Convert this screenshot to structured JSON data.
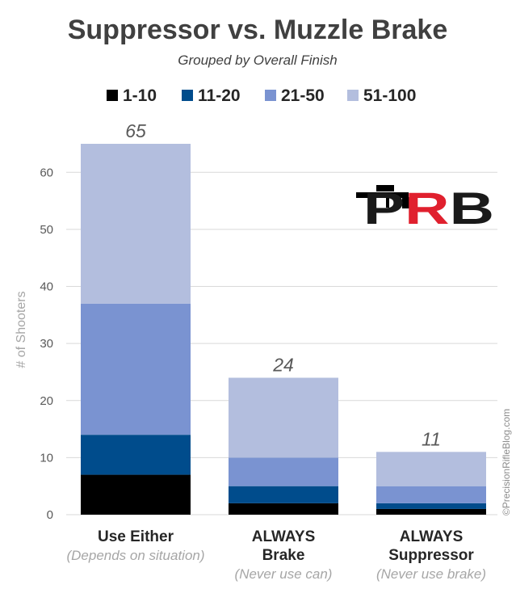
{
  "chart_data": {
    "type": "bar",
    "stacked": true,
    "title": "Suppressor vs. Muzzle Brake",
    "subtitle": "Grouped by Overall Finish",
    "ylabel": "# of Shooters",
    "ylim": [
      0,
      65
    ],
    "yticks": [
      0,
      10,
      20,
      30,
      40,
      50,
      60
    ],
    "grid": true,
    "legend_position": "top",
    "categories": [
      {
        "main": [
          "Use Either"
        ],
        "sub": "(Depends on situation)"
      },
      {
        "main": [
          "ALWAYS",
          "Brake"
        ],
        "sub": "(Never use can)"
      },
      {
        "main": [
          "ALWAYS",
          "Suppressor"
        ],
        "sub": "(Never use brake)"
      }
    ],
    "totals": [
      "65",
      "24",
      "11"
    ],
    "series": [
      {
        "name": "1-10",
        "color": "#000000",
        "values": [
          7,
          2,
          1
        ]
      },
      {
        "name": "11-20",
        "color": "#004c8c",
        "values": [
          7,
          3,
          1
        ]
      },
      {
        "name": "21-50",
        "color": "#7a93d1",
        "values": [
          23,
          5,
          3
        ]
      },
      {
        "name": "51-100",
        "color": "#b3bede",
        "values": [
          28,
          14,
          6
        ]
      }
    ]
  },
  "logo": {
    "text": "PRB"
  },
  "copyright": "©PrecisionRifleBlog.com"
}
